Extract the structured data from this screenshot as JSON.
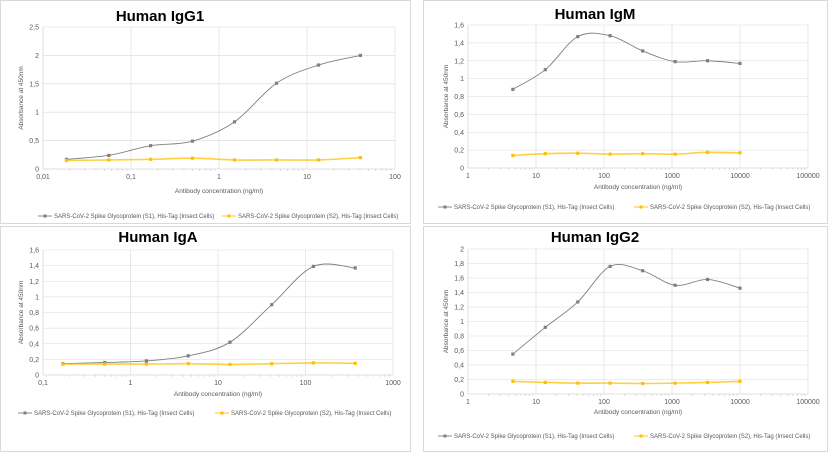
{
  "colors": {
    "s1": "#7f7f7f",
    "s2": "#ffc000",
    "grid": "#d9d9d9",
    "text": "#595959"
  },
  "chart_data": [
    {
      "type": "line",
      "title": "Human IgG1",
      "xlabel": "Antibody concentration (ng/ml)",
      "ylabel": "Absorbance at 450nm",
      "xscale": "log",
      "xlim": [
        0.01,
        100
      ],
      "xticks": [
        0.01,
        0.1,
        1,
        10,
        100
      ],
      "xtick_labels": [
        "0,01",
        "0,1",
        "1",
        "10",
        "100"
      ],
      "ylim": [
        0,
        2.5
      ],
      "yticks": [
        0,
        0.5,
        1,
        1.5,
        2,
        2.5
      ],
      "ytick_labels": [
        "0",
        "0,5",
        "1",
        "1,5",
        "2",
        "2,5"
      ],
      "grid": true,
      "legend": "bottom",
      "x": [
        0.0185,
        0.056,
        0.167,
        0.5,
        1.5,
        4.5,
        13.5,
        40.5
      ],
      "series": [
        {
          "name": "SARS-CoV-2 Spike Glycoprotein (S1), His-Tag (Insect Cells)",
          "values": [
            0.17,
            0.24,
            0.41,
            0.49,
            0.83,
            1.51,
            1.83,
            2.0
          ]
        },
        {
          "name": "SARS-CoV-2 Spike Glycoprotein (S2), His-Tag (Insect Cells)",
          "values": [
            0.15,
            0.16,
            0.17,
            0.19,
            0.16,
            0.16,
            0.16,
            0.2
          ]
        }
      ]
    },
    {
      "type": "line",
      "title": "Human IgM",
      "xlabel": "Antibody concentration (ng/ml)",
      "ylabel": "Absorbance at 450nm",
      "xscale": "log",
      "xlim": [
        1,
        100000
      ],
      "xticks": [
        1,
        10,
        100,
        1000,
        10000,
        100000
      ],
      "xtick_labels": [
        "1",
        "10",
        "100",
        "1000",
        "10000",
        "100000"
      ],
      "ylim": [
        0,
        1.6
      ],
      "yticks": [
        0,
        0.2,
        0.4,
        0.6,
        0.8,
        1,
        1.2,
        1.4,
        1.6
      ],
      "ytick_labels": [
        "0",
        "0,2",
        "0,4",
        "0,6",
        "0,8",
        "1",
        "1,2",
        "1,4",
        "1,6"
      ],
      "grid": true,
      "legend": "bottom",
      "x": [
        4.57,
        13.7,
        41.2,
        123,
        370,
        1111,
        3333,
        10000
      ],
      "series": [
        {
          "name": "SARS-CoV-2 Spike Glycoprotein (S1), His-Tag (Insect Cells)",
          "values": [
            0.88,
            1.1,
            1.47,
            1.48,
            1.31,
            1.19,
            1.2,
            1.17
          ]
        },
        {
          "name": "SARS-CoV-2 Spike Glycoprotein (S2), His-Tag (Insect Cells)",
          "values": [
            0.14,
            0.16,
            0.165,
            0.155,
            0.16,
            0.155,
            0.175,
            0.17
          ]
        }
      ]
    },
    {
      "type": "line",
      "title": "Human IgA",
      "xlabel": "Antibody concentration (ng/ml)",
      "ylabel": "Absorbance at 450nm",
      "xscale": "log",
      "xlim": [
        0.1,
        1000
      ],
      "xticks": [
        0.1,
        1,
        10,
        100,
        1000
      ],
      "xtick_labels": [
        "0,1",
        "1",
        "10",
        "100",
        "1000"
      ],
      "ylim": [
        0,
        1.6
      ],
      "yticks": [
        0,
        0.2,
        0.4,
        0.6,
        0.8,
        1,
        1.2,
        1.4,
        1.6
      ],
      "ytick_labels": [
        "0",
        "0,2",
        "0,4",
        "0,6",
        "0,8",
        "1",
        "1,2",
        "1,4",
        "1,6"
      ],
      "grid": true,
      "legend": "bottom",
      "x": [
        0.169,
        0.508,
        1.52,
        4.57,
        13.7,
        41.1,
        123,
        370
      ],
      "series": [
        {
          "name": "SARS-CoV-2 Spike Glycoprotein (S1), His-Tag (Insect Cells)",
          "values": [
            0.145,
            0.16,
            0.18,
            0.245,
            0.42,
            0.9,
            1.39,
            1.37
          ]
        },
        {
          "name": "SARS-CoV-2 Spike Glycoprotein (S2), His-Tag (Insect Cells)",
          "values": [
            0.14,
            0.14,
            0.14,
            0.145,
            0.135,
            0.145,
            0.155,
            0.15
          ]
        }
      ]
    },
    {
      "type": "line",
      "title": "Human IgG2",
      "xlabel": "Antibody concentration (ng/ml)",
      "ylabel": "Absorbance at 450nm",
      "xscale": "log",
      "xlim": [
        1,
        100000
      ],
      "xticks": [
        1,
        10,
        100,
        1000,
        10000,
        100000
      ],
      "xtick_labels": [
        "1",
        "10",
        "100",
        "1000",
        "10000",
        "100000"
      ],
      "ylim": [
        0,
        2
      ],
      "yticks": [
        0,
        0.2,
        0.4,
        0.6,
        0.8,
        1,
        1.2,
        1.4,
        1.6,
        1.8,
        2
      ],
      "ytick_labels": [
        "0",
        "0,2",
        "0,4",
        "0,6",
        "0,8",
        "1",
        "1,2",
        "1,4",
        "1,6",
        "1,8",
        "2"
      ],
      "grid": true,
      "legend": "bottom",
      "x": [
        4.57,
        13.7,
        41.2,
        123,
        370,
        1111,
        3333,
        10000
      ],
      "series": [
        {
          "name": "SARS-CoV-2 Spike Glycoprotein (S1), His-Tag (Insect Cells)",
          "values": [
            0.55,
            0.92,
            1.27,
            1.76,
            1.7,
            1.5,
            1.58,
            1.46
          ]
        },
        {
          "name": "SARS-CoV-2 Spike Glycoprotein (S2), His-Tag (Insect Cells)",
          "values": [
            0.175,
            0.16,
            0.15,
            0.15,
            0.145,
            0.15,
            0.16,
            0.175
          ]
        }
      ]
    }
  ]
}
